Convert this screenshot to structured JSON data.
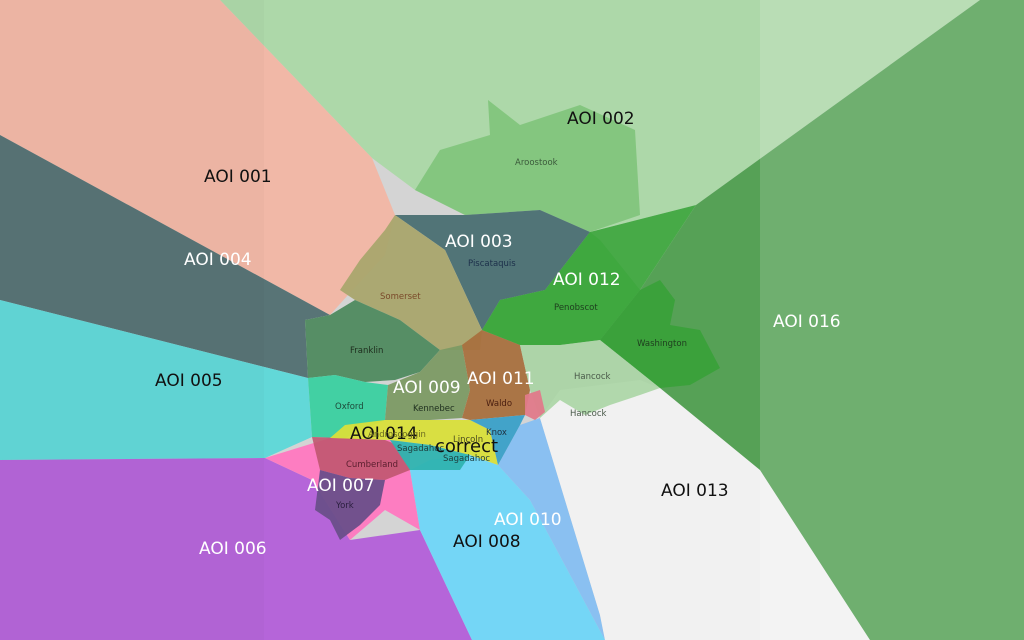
{
  "aoi_labels": [
    {
      "id": "aoi-001",
      "text": "AOI 001",
      "tone": "dark"
    },
    {
      "id": "aoi-002",
      "text": "AOI 002",
      "tone": "dark"
    },
    {
      "id": "aoi-003",
      "text": "AOI 003",
      "tone": "light"
    },
    {
      "id": "aoi-004",
      "text": "AOI 004",
      "tone": "light"
    },
    {
      "id": "aoi-005",
      "text": "AOI 005",
      "tone": "dark"
    },
    {
      "id": "aoi-006",
      "text": "AOI 006",
      "tone": "light"
    },
    {
      "id": "aoi-007",
      "text": "AOI 007",
      "tone": "light"
    },
    {
      "id": "aoi-008",
      "text": "AOI 008",
      "tone": "dark"
    },
    {
      "id": "aoi-009",
      "text": "AOI 009",
      "tone": "light"
    },
    {
      "id": "aoi-010",
      "text": "AOI 010",
      "tone": "light"
    },
    {
      "id": "aoi-011",
      "text": "AOI 011",
      "tone": "light"
    },
    {
      "id": "aoi-012",
      "text": "AOI 012",
      "tone": "light"
    },
    {
      "id": "aoi-013",
      "text": "AOI 013",
      "tone": "dark"
    },
    {
      "id": "aoi-014",
      "text": "AOI 014",
      "tone": "dark"
    },
    {
      "id": "aoi-016",
      "text": "AOI 016",
      "tone": "light"
    }
  ],
  "county_labels": [
    {
      "id": "aroostook",
      "text": "Aroostook"
    },
    {
      "id": "piscataquis",
      "text": "Piscataquis"
    },
    {
      "id": "somerset",
      "text": "Somerset"
    },
    {
      "id": "penobscot",
      "text": "Penobscot"
    },
    {
      "id": "washington",
      "text": "Washington"
    },
    {
      "id": "franklin",
      "text": "Franklin"
    },
    {
      "id": "hancock",
      "text": "Hancock"
    },
    {
      "id": "hancock-2",
      "text": "Hancock"
    },
    {
      "id": "oxford",
      "text": "Oxford"
    },
    {
      "id": "kennebec",
      "text": "Kennebec"
    },
    {
      "id": "waldo",
      "text": "Waldo"
    },
    {
      "id": "androscoggin",
      "text": "Androscoggin"
    },
    {
      "id": "lincoln",
      "text": "Lincoln"
    },
    {
      "id": "knox",
      "text": "Knox"
    },
    {
      "id": "sagadahoc",
      "text": "Sagadahoc"
    },
    {
      "id": "sagadahoc-2",
      "text": "Sagadahoc"
    },
    {
      "id": "cumberland",
      "text": "Cumberland"
    },
    {
      "id": "york",
      "text": "York"
    }
  ],
  "marker": {
    "text": "correct"
  },
  "colors": {
    "aoi_001": "#f4b5a2",
    "aoi_002": "#a9d8a4",
    "aoi_003": "#4a6f72",
    "aoi_004": "#4d6b6e",
    "aoi_005": "#55d8d8",
    "aoi_006": "#b35fd9",
    "aoi_007": "#ff78c0",
    "aoi_008": "#6fd6f8",
    "aoi_009": "#8faa6a",
    "aoi_010": "#86bff2",
    "aoi_011": "#a8703e",
    "aoi_012": "#3fa83f",
    "aoi_013": "#f2f2f2",
    "aoi_014": "#d9df3a",
    "aoi_016": "#4f9e4f"
  }
}
